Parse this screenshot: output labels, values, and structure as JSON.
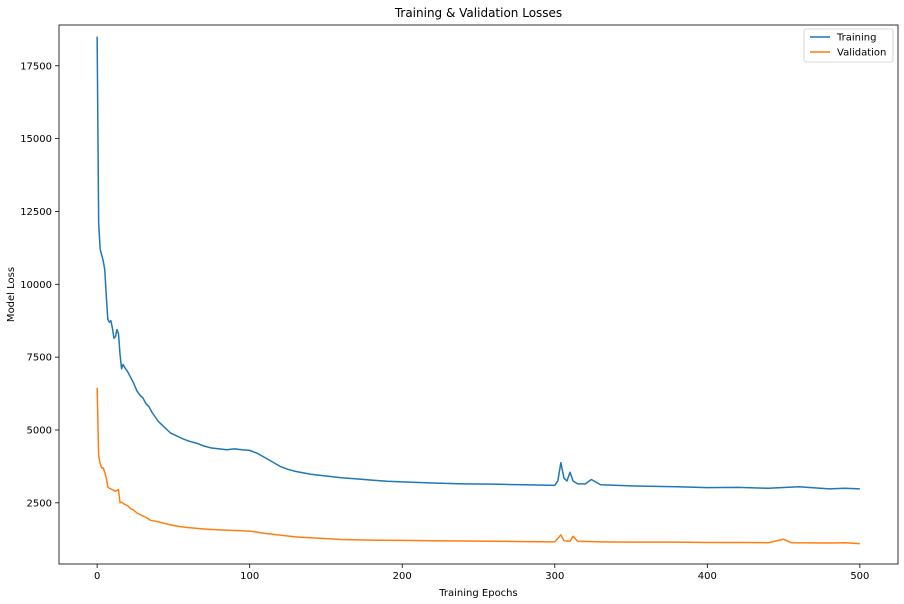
{
  "chart_data": {
    "type": "line",
    "title": "Training & Validation Losses",
    "xlabel": "Training Epochs",
    "ylabel": "Model Loss",
    "xlim": [
      -25,
      525
    ],
    "ylim": [
      400,
      18900
    ],
    "x_ticks": [
      0,
      100,
      200,
      300,
      400,
      500
    ],
    "y_ticks": [
      2500,
      5000,
      7500,
      10000,
      12500,
      15000,
      17500
    ],
    "grid": false,
    "legend": "top-right",
    "series": [
      {
        "name": "Training",
        "color": "#1f77b4",
        "points": [
          [
            0,
            18500
          ],
          [
            1,
            12100
          ],
          [
            2,
            11200
          ],
          [
            3,
            11000
          ],
          [
            4,
            10800
          ],
          [
            5,
            10500
          ],
          [
            6,
            9600
          ],
          [
            7,
            8800
          ],
          [
            8,
            8700
          ],
          [
            9,
            8750
          ],
          [
            10,
            8500
          ],
          [
            11,
            8150
          ],
          [
            12,
            8200
          ],
          [
            13,
            8450
          ],
          [
            14,
            8300
          ],
          [
            15,
            7600
          ],
          [
            16,
            7100
          ],
          [
            17,
            7250
          ],
          [
            18,
            7150
          ],
          [
            20,
            7000
          ],
          [
            22,
            6800
          ],
          [
            24,
            6600
          ],
          [
            26,
            6350
          ],
          [
            28,
            6200
          ],
          [
            30,
            6100
          ],
          [
            32,
            5900
          ],
          [
            34,
            5800
          ],
          [
            36,
            5600
          ],
          [
            38,
            5450
          ],
          [
            40,
            5300
          ],
          [
            42,
            5200
          ],
          [
            44,
            5100
          ],
          [
            46,
            5000
          ],
          [
            48,
            4900
          ],
          [
            50,
            4850
          ],
          [
            52,
            4800
          ],
          [
            54,
            4750
          ],
          [
            56,
            4700
          ],
          [
            60,
            4620
          ],
          [
            65,
            4550
          ],
          [
            70,
            4450
          ],
          [
            75,
            4380
          ],
          [
            80,
            4350
          ],
          [
            85,
            4320
          ],
          [
            90,
            4350
          ],
          [
            95,
            4320
          ],
          [
            100,
            4300
          ],
          [
            105,
            4200
          ],
          [
            110,
            4050
          ],
          [
            115,
            3900
          ],
          [
            120,
            3750
          ],
          [
            125,
            3650
          ],
          [
            130,
            3580
          ],
          [
            140,
            3480
          ],
          [
            150,
            3420
          ],
          [
            160,
            3360
          ],
          [
            170,
            3320
          ],
          [
            180,
            3280
          ],
          [
            190,
            3240
          ],
          [
            200,
            3220
          ],
          [
            220,
            3180
          ],
          [
            240,
            3150
          ],
          [
            260,
            3140
          ],
          [
            280,
            3120
          ],
          [
            300,
            3100
          ],
          [
            302,
            3250
          ],
          [
            304,
            3880
          ],
          [
            306,
            3350
          ],
          [
            308,
            3250
          ],
          [
            310,
            3550
          ],
          [
            312,
            3250
          ],
          [
            315,
            3150
          ],
          [
            320,
            3150
          ],
          [
            324,
            3300
          ],
          [
            330,
            3120
          ],
          [
            350,
            3080
          ],
          [
            380,
            3050
          ],
          [
            400,
            3020
          ],
          [
            420,
            3030
          ],
          [
            440,
            3000
          ],
          [
            460,
            3050
          ],
          [
            480,
            2980
          ],
          [
            490,
            3000
          ],
          [
            500,
            2980
          ]
        ]
      },
      {
        "name": "Validation",
        "color": "#ff7f0e",
        "points": [
          [
            0,
            6450
          ],
          [
            1,
            4100
          ],
          [
            2,
            3850
          ],
          [
            3,
            3700
          ],
          [
            4,
            3700
          ],
          [
            5,
            3550
          ],
          [
            6,
            3350
          ],
          [
            7,
            3050
          ],
          [
            8,
            3000
          ],
          [
            10,
            2950
          ],
          [
            12,
            2900
          ],
          [
            14,
            2950
          ],
          [
            15,
            2500
          ],
          [
            16,
            2520
          ],
          [
            18,
            2450
          ],
          [
            20,
            2400
          ],
          [
            22,
            2300
          ],
          [
            24,
            2250
          ],
          [
            26,
            2150
          ],
          [
            28,
            2100
          ],
          [
            30,
            2050
          ],
          [
            32,
            2000
          ],
          [
            35,
            1900
          ],
          [
            40,
            1850
          ],
          [
            45,
            1780
          ],
          [
            50,
            1720
          ],
          [
            55,
            1680
          ],
          [
            60,
            1650
          ],
          [
            70,
            1600
          ],
          [
            80,
            1570
          ],
          [
            90,
            1550
          ],
          [
            100,
            1530
          ],
          [
            110,
            1450
          ],
          [
            120,
            1390
          ],
          [
            130,
            1330
          ],
          [
            140,
            1300
          ],
          [
            150,
            1270
          ],
          [
            160,
            1240
          ],
          [
            180,
            1220
          ],
          [
            200,
            1210
          ],
          [
            220,
            1200
          ],
          [
            240,
            1190
          ],
          [
            260,
            1180
          ],
          [
            280,
            1170
          ],
          [
            300,
            1160
          ],
          [
            304,
            1400
          ],
          [
            306,
            1200
          ],
          [
            310,
            1180
          ],
          [
            312,
            1350
          ],
          [
            315,
            1180
          ],
          [
            330,
            1160
          ],
          [
            350,
            1150
          ],
          [
            380,
            1150
          ],
          [
            400,
            1140
          ],
          [
            420,
            1140
          ],
          [
            440,
            1130
          ],
          [
            450,
            1250
          ],
          [
            455,
            1130
          ],
          [
            480,
            1120
          ],
          [
            490,
            1130
          ],
          [
            500,
            1100
          ]
        ]
      }
    ]
  }
}
